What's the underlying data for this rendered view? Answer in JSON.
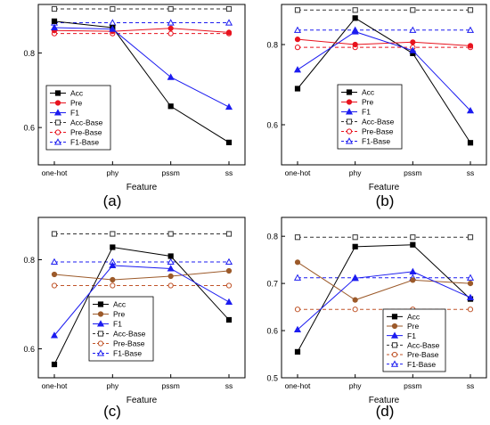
{
  "chart_data": [
    {
      "type": "line",
      "panel_label": "(a)",
      "xlabel": "Feature",
      "ylabel": "",
      "categories": [
        "one-hot",
        "phy",
        "pssm",
        "ss"
      ],
      "ylim": [
        0.5,
        0.93
      ],
      "yticks": [
        0.6,
        0.8
      ],
      "legend_position": "lower-left",
      "series": [
        {
          "name": "Acc",
          "values": [
            0.885,
            0.868,
            0.657,
            0.56
          ],
          "color": "#000000",
          "marker": "square-filled",
          "dash": false
        },
        {
          "name": "Pre",
          "values": [
            0.86,
            0.858,
            0.866,
            0.855
          ],
          "color": "#e8131e",
          "marker": "circle-filled",
          "dash": false
        },
        {
          "name": "F1",
          "values": [
            0.868,
            0.864,
            0.735,
            0.655
          ],
          "color": "#1c1cf0",
          "marker": "triangle-filled",
          "dash": false
        },
        {
          "name": "Acc-Base",
          "values": [
            0.918,
            0.918,
            0.918,
            0.918
          ],
          "color": "#333333",
          "marker": "square-open",
          "dash": true
        },
        {
          "name": "Pre-Base",
          "values": [
            0.852,
            0.852,
            0.852,
            0.852
          ],
          "color": "#e8131e",
          "marker": "circle-open",
          "dash": true
        },
        {
          "name": "F1-Base",
          "values": [
            0.881,
            0.881,
            0.881,
            0.881
          ],
          "color": "#1c1cf0",
          "marker": "triangle-open",
          "dash": true
        }
      ]
    },
    {
      "type": "line",
      "panel_label": "(b)",
      "xlabel": "Feature",
      "ylabel": "",
      "categories": [
        "one-hot",
        "phy",
        "pssm",
        "ss"
      ],
      "ylim": [
        0.5,
        0.9
      ],
      "yticks": [
        0.6,
        0.8
      ],
      "legend_position": "lower-left",
      "series": [
        {
          "name": "Acc",
          "values": [
            0.69,
            0.866,
            0.778,
            0.555
          ],
          "color": "#000000",
          "marker": "square-filled",
          "dash": false
        },
        {
          "name": "Pre",
          "values": [
            0.813,
            0.8,
            0.806,
            0.797
          ],
          "color": "#e8131e",
          "marker": "circle-filled",
          "dash": false
        },
        {
          "name": "F1",
          "values": [
            0.737,
            0.832,
            0.785,
            0.635
          ],
          "color": "#1c1cf0",
          "marker": "triangle-filled",
          "dash": false
        },
        {
          "name": "Acc-Base",
          "values": [
            0.886,
            0.886,
            0.886,
            0.886
          ],
          "color": "#333333",
          "marker": "square-open",
          "dash": true
        },
        {
          "name": "Pre-Base",
          "values": [
            0.793,
            0.793,
            0.793,
            0.793
          ],
          "color": "#e8131e",
          "marker": "circle-open",
          "dash": true
        },
        {
          "name": "F1-Base",
          "values": [
            0.836,
            0.836,
            0.836,
            0.836
          ],
          "color": "#1c1cf0",
          "marker": "triangle-open",
          "dash": true
        }
      ]
    },
    {
      "type": "line",
      "panel_label": "(c)",
      "xlabel": "Feature",
      "ylabel": "",
      "categories": [
        "one-hot",
        "phy",
        "pssm",
        "ss"
      ],
      "ylim": [
        0.535,
        0.895
      ],
      "yticks": [
        0.6,
        0.8
      ],
      "legend_position": "lower-center",
      "series": [
        {
          "name": "Acc",
          "values": [
            0.565,
            0.828,
            0.808,
            0.665
          ],
          "color": "#000000",
          "marker": "square-filled",
          "dash": false
        },
        {
          "name": "Pre",
          "values": [
            0.767,
            0.755,
            0.763,
            0.775
          ],
          "color": "#9c5a2a",
          "marker": "circle-filled",
          "dash": false
        },
        {
          "name": "F1",
          "values": [
            0.63,
            0.787,
            0.78,
            0.705
          ],
          "color": "#1c1cf0",
          "marker": "triangle-filled",
          "dash": false
        },
        {
          "name": "Acc-Base",
          "values": [
            0.858,
            0.858,
            0.858,
            0.858
          ],
          "color": "#333333",
          "marker": "square-open",
          "dash": true
        },
        {
          "name": "Pre-Base",
          "values": [
            0.742,
            0.742,
            0.742,
            0.742
          ],
          "color": "#c0552a",
          "marker": "circle-open",
          "dash": true
        },
        {
          "name": "F1-Base",
          "values": [
            0.795,
            0.795,
            0.795,
            0.795
          ],
          "color": "#1c1cf0",
          "marker": "triangle-open",
          "dash": true
        }
      ]
    },
    {
      "type": "line",
      "panel_label": "(d)",
      "xlabel": "Feature",
      "ylabel": "",
      "categories": [
        "one-hot",
        "phy",
        "pssm",
        "ss"
      ],
      "ylim": [
        0.5,
        0.84
      ],
      "yticks": [
        0.5,
        0.6,
        0.7,
        0.8
      ],
      "legend_position": "lower-center",
      "series": [
        {
          "name": "Acc",
          "values": [
            0.555,
            0.778,
            0.782,
            0.667
          ],
          "color": "#000000",
          "marker": "square-filled",
          "dash": false
        },
        {
          "name": "Pre",
          "values": [
            0.745,
            0.665,
            0.707,
            0.7
          ],
          "color": "#9c5a2a",
          "marker": "circle-filled",
          "dash": false
        },
        {
          "name": "F1",
          "values": [
            0.602,
            0.711,
            0.725,
            0.67
          ],
          "color": "#1c1cf0",
          "marker": "triangle-filled",
          "dash": false
        },
        {
          "name": "Acc-Base",
          "values": [
            0.798,
            0.798,
            0.798,
            0.798
          ],
          "color": "#333333",
          "marker": "square-open",
          "dash": true
        },
        {
          "name": "Pre-Base",
          "values": [
            0.645,
            0.645,
            0.645,
            0.645
          ],
          "color": "#c0552a",
          "marker": "circle-open",
          "dash": true
        },
        {
          "name": "F1-Base",
          "values": [
            0.712,
            0.712,
            0.712,
            0.712
          ],
          "color": "#1c1cf0",
          "marker": "triangle-open",
          "dash": true
        }
      ]
    }
  ]
}
